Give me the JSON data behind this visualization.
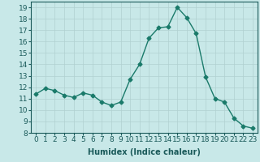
{
  "x": [
    0,
    1,
    2,
    3,
    4,
    5,
    6,
    7,
    8,
    9,
    10,
    11,
    12,
    13,
    14,
    15,
    16,
    17,
    18,
    19,
    20,
    21,
    22,
    23
  ],
  "y": [
    11.4,
    11.9,
    11.7,
    11.3,
    11.1,
    11.5,
    11.3,
    10.7,
    10.4,
    10.7,
    12.7,
    14.0,
    16.3,
    17.2,
    17.3,
    19.0,
    18.1,
    16.7,
    12.9,
    11.0,
    10.7,
    9.3,
    8.6,
    8.4
  ],
  "line_color": "#1a7a6a",
  "marker": "D",
  "markersize": 2.5,
  "linewidth": 1.0,
  "bg_color": "#c8e8e8",
  "grid_color": "#b0d0d0",
  "xlabel": "Humidex (Indice chaleur)",
  "ylim": [
    8,
    19.5
  ],
  "xlim": [
    -0.5,
    23.5
  ],
  "yticks": [
    8,
    9,
    10,
    11,
    12,
    13,
    14,
    15,
    16,
    17,
    18,
    19
  ],
  "xticks": [
    0,
    1,
    2,
    3,
    4,
    5,
    6,
    7,
    8,
    9,
    10,
    11,
    12,
    13,
    14,
    15,
    16,
    17,
    18,
    19,
    20,
    21,
    22,
    23
  ],
  "xlabel_fontsize": 7,
  "tick_fontsize": 6.5,
  "text_color": "#1a5a5a"
}
